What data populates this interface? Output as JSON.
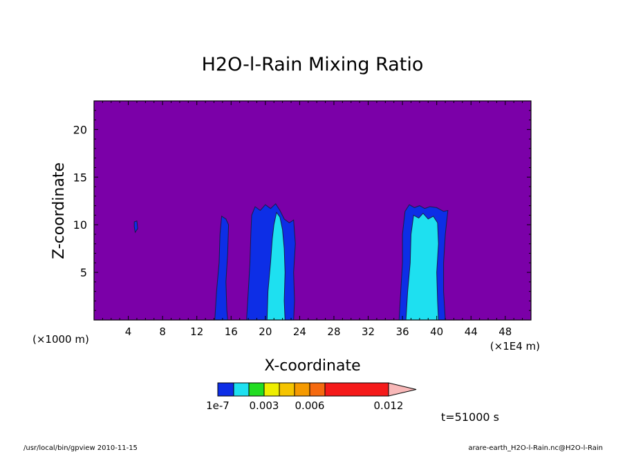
{
  "chart_data": {
    "type": "heatmap",
    "title": "H2O-l-Rain Mixing Ratio",
    "xlabel": "X-coordinate",
    "ylabel": "Z-coordinate",
    "x_unit_left": "(×1000 m)",
    "x_unit_right": "(×1E4 m)",
    "x_range": [
      0,
      51
    ],
    "y_range": [
      0,
      23
    ],
    "x_ticks": [
      4,
      8,
      12,
      16,
      20,
      24,
      28,
      32,
      36,
      40,
      44,
      48
    ],
    "y_ticks": [
      5,
      10,
      15,
      20
    ],
    "background_color": "#7b00a8",
    "colorbar": {
      "levels": [
        {
          "color": "#0d2ee6"
        },
        {
          "color": "#1ee0f0"
        },
        {
          "color": "#22dd22"
        },
        {
          "color": "#eeee00"
        },
        {
          "color": "#f5c400"
        },
        {
          "color": "#f59a00"
        },
        {
          "color": "#f56a10"
        },
        {
          "color": "#f51a1a"
        },
        {
          "color": "#f57a78"
        },
        {
          "color": "#f8b8b8",
          "arrow": true
        }
      ],
      "tick_labels": [
        "1e-7",
        "0.003",
        "0.006",
        "0.012"
      ]
    },
    "regions": [
      {
        "name": "cell-x5",
        "level": 0,
        "polygon": [
          [
            4.7,
            10.3
          ],
          [
            5.0,
            10.4
          ],
          [
            5.1,
            9.6
          ],
          [
            4.8,
            9.2
          ],
          [
            4.7,
            9.8
          ]
        ]
      },
      {
        "name": "cell-x15-outer",
        "level": 0,
        "polygon": [
          [
            14.1,
            0
          ],
          [
            14.3,
            3
          ],
          [
            14.6,
            6
          ],
          [
            14.7,
            9
          ],
          [
            14.9,
            10.9
          ],
          [
            15.4,
            10.6
          ],
          [
            15.7,
            10
          ],
          [
            15.6,
            7
          ],
          [
            15.4,
            4
          ],
          [
            15.5,
            1
          ],
          [
            15.6,
            0
          ]
        ]
      },
      {
        "name": "cell-x20-outer",
        "level": 0,
        "polygon": [
          [
            17.8,
            0
          ],
          [
            18.0,
            3
          ],
          [
            18.2,
            6
          ],
          [
            18.3,
            9
          ],
          [
            18.4,
            11
          ],
          [
            18.8,
            11.9
          ],
          [
            19.4,
            11.5
          ],
          [
            20.0,
            12.1
          ],
          [
            20.6,
            11.7
          ],
          [
            21.2,
            12.2
          ],
          [
            21.7,
            11.5
          ],
          [
            22.2,
            10.6
          ],
          [
            22.8,
            10.2
          ],
          [
            23.3,
            10.5
          ],
          [
            23.5,
            8
          ],
          [
            23.3,
            5
          ],
          [
            23.4,
            2
          ],
          [
            23.3,
            0
          ]
        ]
      },
      {
        "name": "cell-x20-inner",
        "level": 1,
        "polygon": [
          [
            20.2,
            0
          ],
          [
            20.3,
            3
          ],
          [
            20.6,
            6
          ],
          [
            20.8,
            8.5
          ],
          [
            21.0,
            10
          ],
          [
            21.3,
            11.3
          ],
          [
            21.7,
            10.8
          ],
          [
            22.0,
            9.5
          ],
          [
            22.2,
            7.5
          ],
          [
            22.3,
            5
          ],
          [
            22.2,
            2
          ],
          [
            22.3,
            0
          ]
        ]
      },
      {
        "name": "cell-x38-outer",
        "level": 0,
        "polygon": [
          [
            35.6,
            0
          ],
          [
            35.8,
            3
          ],
          [
            36.0,
            6
          ],
          [
            36.0,
            9
          ],
          [
            36.3,
            11.4
          ],
          [
            36.8,
            12.1
          ],
          [
            37.4,
            11.8
          ],
          [
            38.0,
            12.0
          ],
          [
            38.6,
            11.7
          ],
          [
            39.2,
            11.9
          ],
          [
            40.0,
            11.8
          ],
          [
            40.8,
            11.4
          ],
          [
            41.3,
            11.5
          ],
          [
            41.0,
            9
          ],
          [
            40.8,
            6
          ],
          [
            40.8,
            3
          ],
          [
            41.0,
            0
          ]
        ]
      },
      {
        "name": "cell-x38-inner",
        "level": 1,
        "polygon": [
          [
            36.4,
            0
          ],
          [
            36.6,
            3
          ],
          [
            36.9,
            6
          ],
          [
            37.0,
            9
          ],
          [
            37.3,
            11.0
          ],
          [
            37.9,
            10.7
          ],
          [
            38.4,
            11.2
          ],
          [
            39.0,
            10.6
          ],
          [
            39.6,
            10.9
          ],
          [
            40.1,
            10.2
          ],
          [
            40.2,
            8
          ],
          [
            40.0,
            5
          ],
          [
            40.1,
            2
          ],
          [
            40.2,
            0
          ]
        ]
      }
    ]
  },
  "time_label": "t=51000 s",
  "footer": {
    "left": "/usr/local/bin/gpview  2010-11-15",
    "right": "arare-earth_H2O-l-Rain.nc@H2O-l-Rain"
  }
}
